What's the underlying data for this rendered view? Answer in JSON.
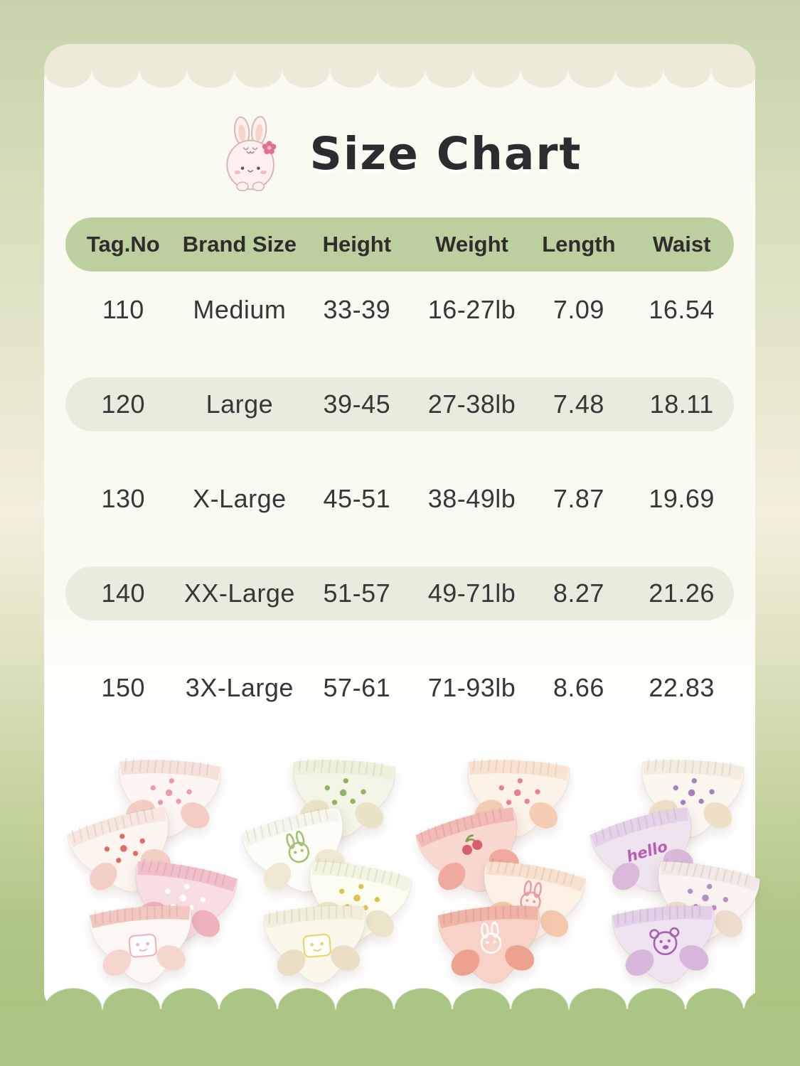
{
  "page": {
    "title": "Size Chart"
  },
  "icons": {
    "mascot": "bunny-with-flower-icon"
  },
  "colors": {
    "background_green_top": "#c6d3aa",
    "background_green_bottom": "#a9c37f",
    "background_cream_mid": "#f4efdf",
    "card_cream": "#fbfaf1",
    "card_white": "#ffffff",
    "top_band_beige": "#edead9",
    "header_pill_green": "#bccf9e",
    "row_pill_green": "#e9ecdc",
    "title_text": "#2c2c2e",
    "table_text": "#373737",
    "bunny_body": "#fdf0ee",
    "bunny_outline": "#d5b9b2",
    "bunny_inner_ear": "#f7d2cd",
    "bunny_flower": "#e26f92"
  },
  "table": {
    "headers": [
      "Tag.No",
      "Brand Size",
      "Height",
      "Weight",
      "Length",
      "Waist"
    ],
    "rows": [
      [
        "110",
        "Medium",
        "33-39",
        "16-27lb",
        "7.09",
        "16.54"
      ],
      [
        "120",
        "Large",
        "39-45",
        "27-38lb",
        "7.48",
        "18.11"
      ],
      [
        "130",
        "X-Large",
        "45-51",
        "38-49lb",
        "7.87",
        "19.69"
      ],
      [
        "140",
        "XX-Large",
        "51-57",
        "49-71lb",
        "8.27",
        "21.26"
      ],
      [
        "150",
        "3X-Large",
        "57-61",
        "71-93lb",
        "8.66",
        "22.83"
      ]
    ],
    "highlighted_row_indexes": [
      1,
      3
    ]
  },
  "chart_data": {
    "type": "table",
    "title": "Size Chart",
    "columns": [
      "Tag.No",
      "Brand Size",
      "Height",
      "Weight",
      "Length",
      "Waist"
    ],
    "rows": [
      [
        "110",
        "Medium",
        "33-39",
        "16-27lb",
        "7.09",
        "16.54"
      ],
      [
        "120",
        "Large",
        "39-45",
        "27-38lb",
        "7.48",
        "18.11"
      ],
      [
        "130",
        "X-Large",
        "45-51",
        "38-49lb",
        "7.87",
        "19.69"
      ],
      [
        "140",
        "XX-Large",
        "51-57",
        "49-71lb",
        "8.27",
        "21.26"
      ],
      [
        "150",
        "3X-Large",
        "57-61",
        "71-93lb",
        "8.66",
        "22.83"
      ]
    ]
  },
  "products": {
    "groups": [
      {
        "name": "pink-set",
        "briefs": [
          {
            "print": "white with pink dots and strawberry bunny",
            "base": "#fdf5f1",
            "band": "#f6e2da",
            "shade": "#f3cdc3",
            "accent": "#ef9aa8",
            "motif": "dots"
          },
          {
            "print": "white with colorful candy print",
            "base": "#fcf4ee",
            "band": "#f7e7df",
            "shade": "#f2cfc7",
            "accent": "#e06a6a",
            "motif": "dots"
          },
          {
            "print": "pink gingham with ice cream",
            "base": "#f8dde2",
            "band": "#f2bfc9",
            "shade": "#efb2bb",
            "accent": "#ffffff",
            "motif": "dots"
          },
          {
            "print": "white with pink trim bunny patch",
            "base": "#fdf7f4",
            "band": "#f2c7c1",
            "shade": "#f5d6ce",
            "accent": "#f0b4c0",
            "motif": "badge"
          }
        ]
      },
      {
        "name": "green-set",
        "briefs": [
          {
            "print": "white with green fruit print",
            "base": "#f3f5e6",
            "band": "#eef1da",
            "shade": "#e9e4c8",
            "accent": "#93b264",
            "motif": "dots"
          },
          {
            "print": "white with green bunny and bow",
            "base": "#fdfdf7",
            "band": "#f6f6ea",
            "shade": "#efe8d2",
            "accent": "#a3c06f",
            "motif": "bunny"
          },
          {
            "print": "white with yellow flowers",
            "base": "#fcfcf0",
            "band": "#f4f4e2",
            "shade": "#ece5cb",
            "accent": "#dfc14e",
            "motif": "dots"
          },
          {
            "print": "cream with lemon patch",
            "base": "#f9f8ea",
            "band": "#f1efdb",
            "shade": "#eadfc4",
            "accent": "#ecd36d",
            "motif": "badge"
          }
        ]
      },
      {
        "name": "peach-set",
        "briefs": [
          {
            "print": "cream with strawberry print",
            "base": "#fdf2e7",
            "band": "#f8e3d2",
            "shade": "#f4cdb4",
            "accent": "#e7828c",
            "motif": "dots"
          },
          {
            "print": "pink with cherry",
            "base": "#f9d8d2",
            "band": "#f3b9b4",
            "shade": "#f0ab9e",
            "accent": "#d95f6d",
            "motif": "cherry"
          },
          {
            "print": "cream with bunny faces and cherries",
            "base": "#fdf1e6",
            "band": "#f8e0cf",
            "shade": "#f3c8ad",
            "accent": "#e89ca6",
            "motif": "bunny"
          },
          {
            "print": "peach pink with white bunny",
            "base": "#f8d2c6",
            "band": "#f0b4a6",
            "shade": "#eda18f",
            "accent": "#ffffff",
            "motif": "bunny"
          }
        ]
      },
      {
        "name": "purple-set",
        "briefs": [
          {
            "print": "white with purple butterflies",
            "base": "#fbf6ee",
            "band": "#f4ecdf",
            "shade": "#eedfc9",
            "accent": "#a57fc2",
            "motif": "dots"
          },
          {
            "print": "lavender with hello lettering",
            "base": "#f0e3f0",
            "band": "#e6d2e8",
            "shade": "#d8b9da",
            "accent": "#b65fb0",
            "motif": "text",
            "text": "hello"
          },
          {
            "print": "white with bear doodles",
            "base": "#faf3f1",
            "band": "#f3e8e4",
            "shade": "#eedccd",
            "accent": "#b88cc4",
            "motif": "dots"
          },
          {
            "print": "lavender with bear face",
            "base": "#efe2f1",
            "band": "#e3cfe7",
            "shade": "#d7b7da",
            "accent": "#a55fae",
            "motif": "bear"
          }
        ]
      }
    ]
  }
}
